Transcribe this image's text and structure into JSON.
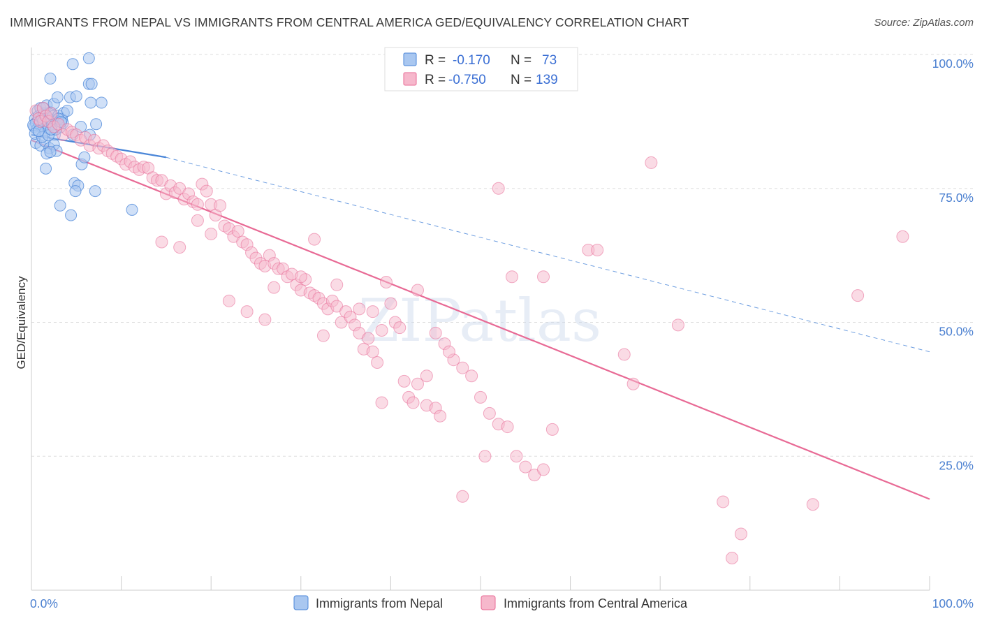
{
  "title": "IMMIGRANTS FROM NEPAL VS IMMIGRANTS FROM CENTRAL AMERICA GED/EQUIVALENCY CORRELATION CHART",
  "source": "Source: ZipAtlas.com",
  "watermark": "ZIPatlas",
  "colors": {
    "nepal": "#4a86d8",
    "nepal_fill": "#a9c7f0",
    "central_america": "#e86a95",
    "central_america_fill": "#f6b8cc",
    "axis_label": "#4a7fd0",
    "grid": "#dddddd"
  },
  "legend": {
    "nepal": {
      "r_label": "R = ",
      "r_value": "-0.170",
      "n_label": "N = ",
      "n_value": "73"
    },
    "central_america": {
      "r_label": "R = ",
      "r_value": "-0.750",
      "n_label": "N = ",
      "n_value": "139"
    }
  },
  "chart_data": {
    "type": "scatter",
    "title": "IMMIGRANTS FROM NEPAL VS IMMIGRANTS FROM CENTRAL AMERICA GED/EQUIVALENCY CORRELATION CHART",
    "xlabel": "",
    "ylabel": "GED/Equivalency",
    "xlim": [
      0,
      100
    ],
    "ylim": [
      0,
      100
    ],
    "x_tick_labels": [
      "0.0%",
      "100.0%"
    ],
    "y_tick_labels": [
      "25.0%",
      "50.0%",
      "75.0%",
      "100.0%"
    ],
    "y_ticks": [
      25,
      50,
      75,
      100
    ],
    "grid": true,
    "legend_position": "top-center",
    "series": [
      {
        "name": "Immigrants from Nepal",
        "color": "#4a86d8",
        "trend": {
          "x0": 0,
          "y0": 85.0,
          "x1": 15,
          "y1": 80.8,
          "dashed_to_x": 100,
          "dashed_to_y": 44.5
        },
        "points": [
          [
            0.3,
            86.5
          ],
          [
            0.4,
            88.0
          ],
          [
            0.5,
            87.2
          ],
          [
            0.6,
            86.0
          ],
          [
            0.7,
            89.5
          ],
          [
            0.8,
            88.5
          ],
          [
            0.9,
            87.0
          ],
          [
            1.0,
            90.0
          ],
          [
            1.1,
            86.5
          ],
          [
            1.2,
            88.2
          ],
          [
            1.3,
            87.5
          ],
          [
            1.4,
            89.0
          ],
          [
            1.5,
            85.5
          ],
          [
            1.6,
            88.8
          ],
          [
            1.7,
            90.5
          ],
          [
            1.8,
            87.0
          ],
          [
            1.9,
            86.2
          ],
          [
            2.0,
            88.0
          ],
          [
            2.1,
            89.2
          ],
          [
            2.2,
            87.8
          ],
          [
            2.3,
            86.8
          ],
          [
            2.4,
            88.5
          ],
          [
            2.5,
            90.8
          ],
          [
            2.6,
            85.0
          ],
          [
            2.8,
            87.5
          ],
          [
            3.0,
            88.6
          ],
          [
            3.2,
            86.4
          ],
          [
            3.4,
            87.9
          ],
          [
            3.6,
            89.1
          ],
          [
            0.5,
            83.5
          ],
          [
            1.0,
            83.0
          ],
          [
            1.5,
            83.8
          ],
          [
            2.0,
            82.5
          ],
          [
            2.5,
            83.2
          ],
          [
            2.8,
            82.0
          ],
          [
            1.7,
            81.5
          ],
          [
            2.1,
            81.8
          ],
          [
            3.0,
            88.0
          ],
          [
            3.5,
            87.2
          ],
          [
            4.0,
            89.5
          ],
          [
            1.6,
            78.7
          ],
          [
            2.9,
            92.0
          ],
          [
            4.3,
            92.0
          ],
          [
            4.6,
            85.0
          ],
          [
            5.0,
            92.2
          ],
          [
            5.5,
            86.5
          ],
          [
            6.5,
            85.0
          ],
          [
            7.2,
            87.0
          ],
          [
            7.8,
            91.0
          ],
          [
            6.6,
            91.0
          ],
          [
            5.6,
            79.5
          ],
          [
            5.9,
            80.8
          ],
          [
            7.1,
            74.5
          ],
          [
            4.8,
            76.0
          ],
          [
            5.2,
            75.5
          ],
          [
            4.9,
            74.5
          ],
          [
            3.2,
            71.8
          ],
          [
            4.4,
            70.0
          ],
          [
            11.2,
            71.0
          ],
          [
            2.1,
            95.5
          ],
          [
            4.6,
            98.2
          ],
          [
            6.4,
            99.3
          ],
          [
            6.4,
            94.5
          ],
          [
            6.7,
            94.5
          ],
          [
            0.2,
            86.8
          ],
          [
            0.4,
            85.2
          ],
          [
            1.2,
            84.6
          ],
          [
            1.9,
            84.9
          ],
          [
            2.7,
            86.0
          ],
          [
            3.3,
            87.4
          ],
          [
            0.8,
            85.7
          ],
          [
            1.3,
            90.0
          ],
          [
            2.2,
            86.0
          ]
        ]
      },
      {
        "name": "Immigrants from Central America",
        "color": "#e86a95",
        "trend": {
          "x0": 0,
          "y0": 84.0,
          "x1": 100,
          "y1": 17.0
        },
        "points": [
          [
            0.5,
            89.5
          ],
          [
            0.8,
            88.0
          ],
          [
            1.0,
            87.5
          ],
          [
            1.3,
            90.0
          ],
          [
            1.6,
            88.5
          ],
          [
            1.9,
            87.5
          ],
          [
            2.2,
            89.0
          ],
          [
            2.5,
            86.5
          ],
          [
            3.0,
            87.0
          ],
          [
            3.5,
            85.0
          ],
          [
            4.0,
            86.0
          ],
          [
            4.5,
            85.5
          ],
          [
            5.0,
            85.0
          ],
          [
            5.5,
            84.0
          ],
          [
            6.0,
            84.5
          ],
          [
            6.5,
            83.0
          ],
          [
            7.0,
            84.0
          ],
          [
            7.5,
            82.5
          ],
          [
            8.0,
            83.0
          ],
          [
            8.5,
            82.0
          ],
          [
            9.0,
            81.5
          ],
          [
            9.5,
            81.0
          ],
          [
            10.0,
            80.5
          ],
          [
            10.5,
            79.5
          ],
          [
            11.0,
            80.0
          ],
          [
            11.5,
            79.0
          ],
          [
            12.0,
            78.5
          ],
          [
            12.5,
            79.0
          ],
          [
            13.0,
            78.8
          ],
          [
            13.5,
            77.0
          ],
          [
            14.0,
            76.5
          ],
          [
            14.5,
            76.5
          ],
          [
            15.0,
            74.0
          ],
          [
            15.5,
            75.5
          ],
          [
            16.0,
            74.2
          ],
          [
            16.5,
            75.0
          ],
          [
            17.0,
            73.0
          ],
          [
            17.5,
            74.0
          ],
          [
            18.0,
            72.5
          ],
          [
            18.5,
            72.0
          ],
          [
            19.0,
            75.8
          ],
          [
            19.5,
            74.5
          ],
          [
            20.0,
            72.0
          ],
          [
            20.5,
            70.0
          ],
          [
            21.0,
            71.8
          ],
          [
            21.5,
            68.0
          ],
          [
            22.0,
            67.5
          ],
          [
            22.5,
            66.0
          ],
          [
            23.0,
            67.0
          ],
          [
            23.5,
            65.0
          ],
          [
            24.0,
            64.5
          ],
          [
            24.5,
            63.0
          ],
          [
            25.0,
            62.0
          ],
          [
            25.5,
            61.0
          ],
          [
            26.0,
            60.5
          ],
          [
            26.5,
            62.5
          ],
          [
            27.0,
            61.0
          ],
          [
            27.5,
            60.0
          ],
          [
            28.0,
            60.0
          ],
          [
            28.5,
            58.5
          ],
          [
            29.0,
            59.0
          ],
          [
            29.5,
            57.0
          ],
          [
            30.0,
            56.0
          ],
          [
            30.5,
            58.0
          ],
          [
            31.0,
            55.5
          ],
          [
            31.5,
            55.0
          ],
          [
            32.0,
            54.5
          ],
          [
            32.5,
            53.5
          ],
          [
            33.0,
            52.5
          ],
          [
            33.5,
            54.0
          ],
          [
            34.0,
            53.0
          ],
          [
            34.5,
            50.0
          ],
          [
            35.0,
            52.0
          ],
          [
            35.5,
            51.0
          ],
          [
            36.0,
            49.5
          ],
          [
            36.5,
            48.0
          ],
          [
            37.0,
            45.0
          ],
          [
            37.5,
            47.0
          ],
          [
            38.0,
            44.5
          ],
          [
            38.5,
            42.5
          ],
          [
            39.0,
            48.5
          ],
          [
            40.0,
            53.5
          ],
          [
            40.5,
            50.0
          ],
          [
            41.0,
            49.0
          ],
          [
            41.5,
            39.0
          ],
          [
            42.0,
            36.0
          ],
          [
            42.5,
            35.0
          ],
          [
            43.0,
            38.5
          ],
          [
            44.0,
            34.5
          ],
          [
            45.0,
            34.0
          ],
          [
            45.5,
            32.5
          ],
          [
            46.0,
            46.0
          ],
          [
            47.0,
            43.0
          ],
          [
            48.0,
            41.5
          ],
          [
            49.0,
            40.0
          ],
          [
            50.0,
            36.0
          ],
          [
            51.0,
            33.0
          ],
          [
            52.0,
            31.0
          ],
          [
            53.0,
            30.5
          ],
          [
            54.0,
            25.0
          ],
          [
            55.0,
            23.0
          ],
          [
            56.0,
            21.5
          ],
          [
            57.0,
            22.5
          ],
          [
            31.5,
            65.5
          ],
          [
            32.5,
            47.5
          ],
          [
            38.0,
            52.0
          ],
          [
            44.0,
            40.0
          ],
          [
            48.0,
            17.5
          ],
          [
            50.5,
            25.0
          ],
          [
            53.5,
            58.5
          ],
          [
            58.0,
            30.0
          ],
          [
            62.0,
            63.5
          ],
          [
            63.0,
            63.5
          ],
          [
            66.0,
            44.0
          ],
          [
            67.0,
            38.5
          ],
          [
            69.0,
            79.8
          ],
          [
            72.0,
            49.5
          ],
          [
            77.0,
            16.5
          ],
          [
            78.0,
            6.0
          ],
          [
            79.0,
            10.5
          ],
          [
            87.0,
            16.0
          ],
          [
            92.0,
            55.0
          ],
          [
            97.0,
            66.0
          ],
          [
            52.0,
            75.0
          ],
          [
            57.0,
            58.5
          ],
          [
            43.0,
            56.0
          ],
          [
            46.5,
            44.5
          ],
          [
            39.0,
            35.0
          ],
          [
            36.5,
            52.5
          ],
          [
            34.0,
            57.0
          ],
          [
            30.0,
            58.5
          ],
          [
            27.0,
            56.5
          ],
          [
            26.0,
            50.5
          ],
          [
            24.0,
            52.0
          ],
          [
            22.0,
            54.0
          ],
          [
            20.0,
            66.5
          ],
          [
            18.5,
            69.0
          ],
          [
            16.5,
            64.0
          ],
          [
            14.5,
            65.0
          ],
          [
            39.5,
            57.5
          ],
          [
            45.0,
            48.0
          ]
        ]
      }
    ]
  },
  "bottom_legend": {
    "nepal_label": "Immigrants from Nepal",
    "central_america_label": "Immigrants from Central America"
  }
}
